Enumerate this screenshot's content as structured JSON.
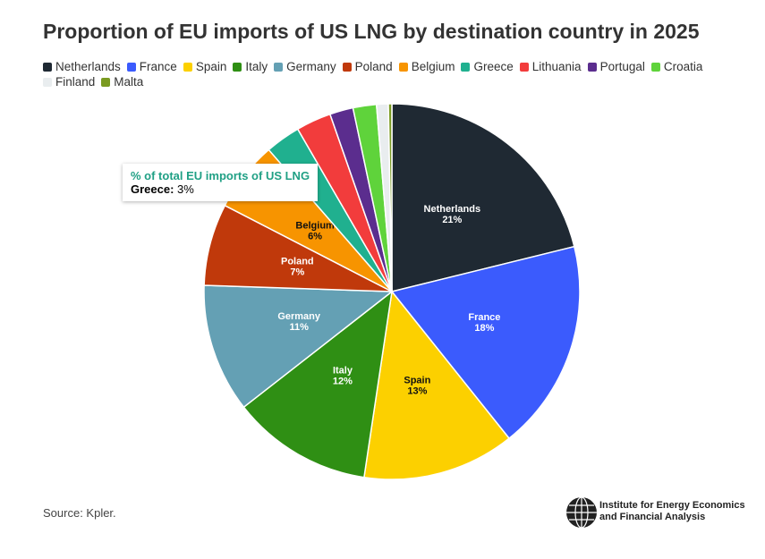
{
  "chart_data": {
    "type": "pie",
    "title": "Proportion of EU imports of US LNG by destination country in 2025",
    "categories": [
      "Netherlands",
      "France",
      "Spain",
      "Italy",
      "Germany",
      "Poland",
      "Belgium",
      "Greece",
      "Lithuania",
      "Portugal",
      "Croatia",
      "Finland",
      "Malta"
    ],
    "values": [
      21,
      18,
      13,
      12,
      11,
      7,
      6,
      3,
      3,
      2,
      2,
      1,
      0.3
    ],
    "value_labels": [
      "21%",
      "18%",
      "13%",
      "12%",
      "11%",
      "7%",
      "6%",
      "3%",
      null,
      null,
      null,
      null,
      null
    ],
    "colors": [
      "#1f2933",
      "#3b5bfd",
      "#fcd000",
      "#2f8f14",
      "#64a0b4",
      "#c0390b",
      "#f79400",
      "#20b08f",
      "#f23c3c",
      "#5b2d8e",
      "#5fd33b",
      "#e9edef",
      "#7a9a21"
    ],
    "label_dark": [
      "Spain",
      "Belgium"
    ],
    "tooltip": {
      "title": "% of total EU imports of US LNG",
      "label": "Greece:",
      "index": 7
    },
    "source": "Source: Kpler.",
    "logo": [
      "Institute for Energy Economics",
      "and Financial Analysis"
    ]
  }
}
